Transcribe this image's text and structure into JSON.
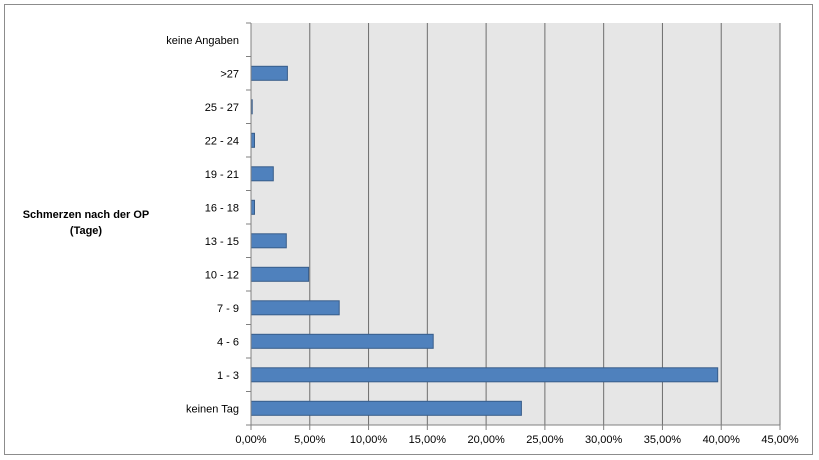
{
  "chart_data": {
    "type": "bar",
    "orientation": "horizontal",
    "title": "",
    "ylabel_lines": [
      "Schmerzen nach der OP",
      "(Tage)"
    ],
    "xlabel": "",
    "categories": [
      "keinen Tag",
      "1 - 3",
      "4 - 6",
      "7 - 9",
      "10 - 12",
      "13 - 15",
      "16 - 18",
      "19 - 21",
      "22 - 24",
      "25 - 27",
      ">27",
      "keine Angaben"
    ],
    "values": [
      23.0,
      39.7,
      15.5,
      7.5,
      4.9,
      3.0,
      0.3,
      1.9,
      0.3,
      0.1,
      3.1,
      0.0
    ],
    "xlim": [
      0,
      45
    ],
    "xticks": [
      0,
      5,
      10,
      15,
      20,
      25,
      30,
      35,
      40,
      45
    ],
    "xtick_labels": [
      "0,00%",
      "5,00%",
      "10,00%",
      "15,00%",
      "20,00%",
      "25,00%",
      "30,00%",
      "35,00%",
      "40,00%",
      "45,00%"
    ],
    "grid": true,
    "legend": "none",
    "colors": {
      "bar_fill": "#4f81bd",
      "bar_stroke": "#385d8a",
      "plot_bg": "#e6e6e6",
      "gridline": "#6e6e6e"
    }
  }
}
